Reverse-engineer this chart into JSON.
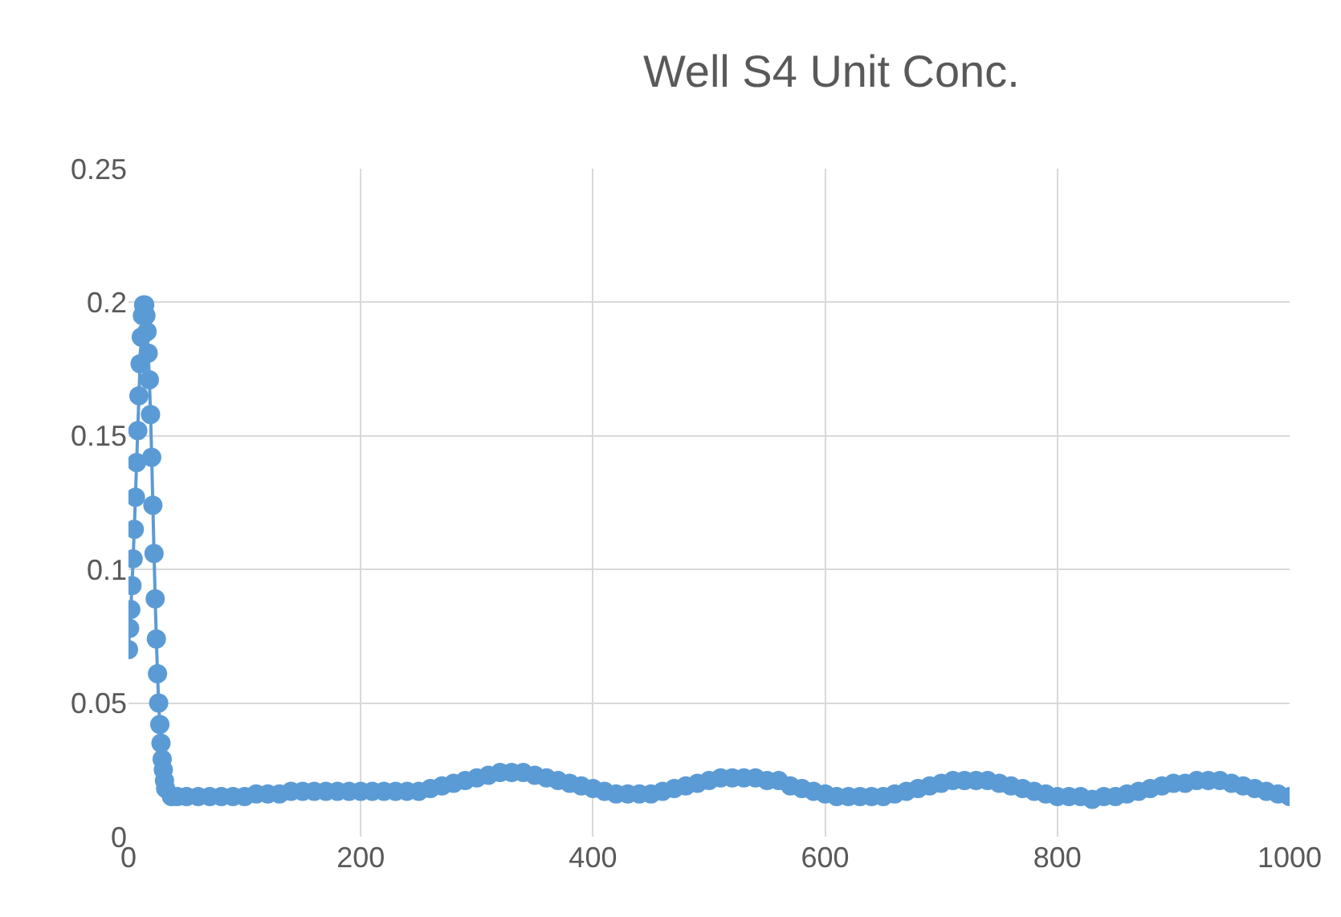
{
  "chart_data": {
    "type": "line",
    "title": "Well S4 Unit Conc.",
    "series": [
      {
        "color": "#5b9bd5",
        "x": [
          0,
          1,
          2,
          3,
          4,
          5,
          6,
          7,
          8,
          9,
          10,
          11,
          12,
          13,
          14,
          15,
          16,
          17,
          18,
          19,
          20,
          21,
          22,
          23,
          24,
          25,
          26,
          27,
          28,
          29,
          30,
          31,
          32,
          37,
          42,
          50,
          60,
          70,
          80,
          90,
          100,
          110,
          120,
          130,
          140,
          150,
          160,
          170,
          180,
          190,
          200,
          210,
          220,
          230,
          240,
          250,
          260,
          270,
          280,
          290,
          300,
          310,
          320,
          330,
          340,
          350,
          360,
          370,
          380,
          390,
          400,
          410,
          420,
          430,
          440,
          450,
          460,
          470,
          480,
          490,
          500,
          510,
          520,
          530,
          540,
          550,
          560,
          570,
          580,
          590,
          600,
          610,
          620,
          630,
          640,
          650,
          660,
          670,
          680,
          690,
          700,
          710,
          720,
          730,
          740,
          750,
          760,
          770,
          780,
          790,
          800,
          810,
          820,
          830,
          840,
          850,
          860,
          870,
          880,
          890,
          900,
          910,
          920,
          930,
          940,
          950,
          960,
          970,
          980,
          990,
          1000
        ],
        "values": [
          0.07,
          0.078,
          0.085,
          0.094,
          0.104,
          0.115,
          0.127,
          0.14,
          0.152,
          0.165,
          0.177,
          0.187,
          0.195,
          0.199,
          0.199,
          0.195,
          0.189,
          0.181,
          0.171,
          0.158,
          0.142,
          0.124,
          0.106,
          0.089,
          0.074,
          0.061,
          0.05,
          0.042,
          0.035,
          0.029,
          0.025,
          0.021,
          0.018,
          0.015,
          0.015,
          0.015,
          0.015,
          0.015,
          0.015,
          0.015,
          0.015,
          0.016,
          0.016,
          0.016,
          0.017,
          0.017,
          0.017,
          0.017,
          0.017,
          0.017,
          0.017,
          0.017,
          0.017,
          0.017,
          0.017,
          0.017,
          0.018,
          0.019,
          0.02,
          0.021,
          0.022,
          0.023,
          0.024,
          0.024,
          0.024,
          0.023,
          0.022,
          0.021,
          0.02,
          0.019,
          0.018,
          0.017,
          0.016,
          0.016,
          0.016,
          0.016,
          0.017,
          0.018,
          0.019,
          0.02,
          0.021,
          0.022,
          0.022,
          0.022,
          0.022,
          0.021,
          0.021,
          0.019,
          0.018,
          0.017,
          0.016,
          0.015,
          0.015,
          0.015,
          0.015,
          0.015,
          0.016,
          0.017,
          0.018,
          0.019,
          0.02,
          0.021,
          0.021,
          0.021,
          0.021,
          0.02,
          0.019,
          0.018,
          0.017,
          0.016,
          0.015,
          0.015,
          0.015,
          0.014,
          0.015,
          0.015,
          0.016,
          0.017,
          0.018,
          0.019,
          0.02,
          0.02,
          0.021,
          0.021,
          0.021,
          0.02,
          0.019,
          0.018,
          0.017,
          0.016,
          0.015
        ]
      }
    ],
    "xlim": [
      0,
      1000
    ],
    "xticks": [
      0,
      200,
      400,
      600,
      800,
      1000
    ],
    "ylim": [
      0,
      0.25
    ],
    "yticks": [
      0,
      0.05,
      0.1,
      0.15,
      0.2,
      0.25
    ],
    "grid": true,
    "marker": "circle",
    "line_style": "solid"
  }
}
